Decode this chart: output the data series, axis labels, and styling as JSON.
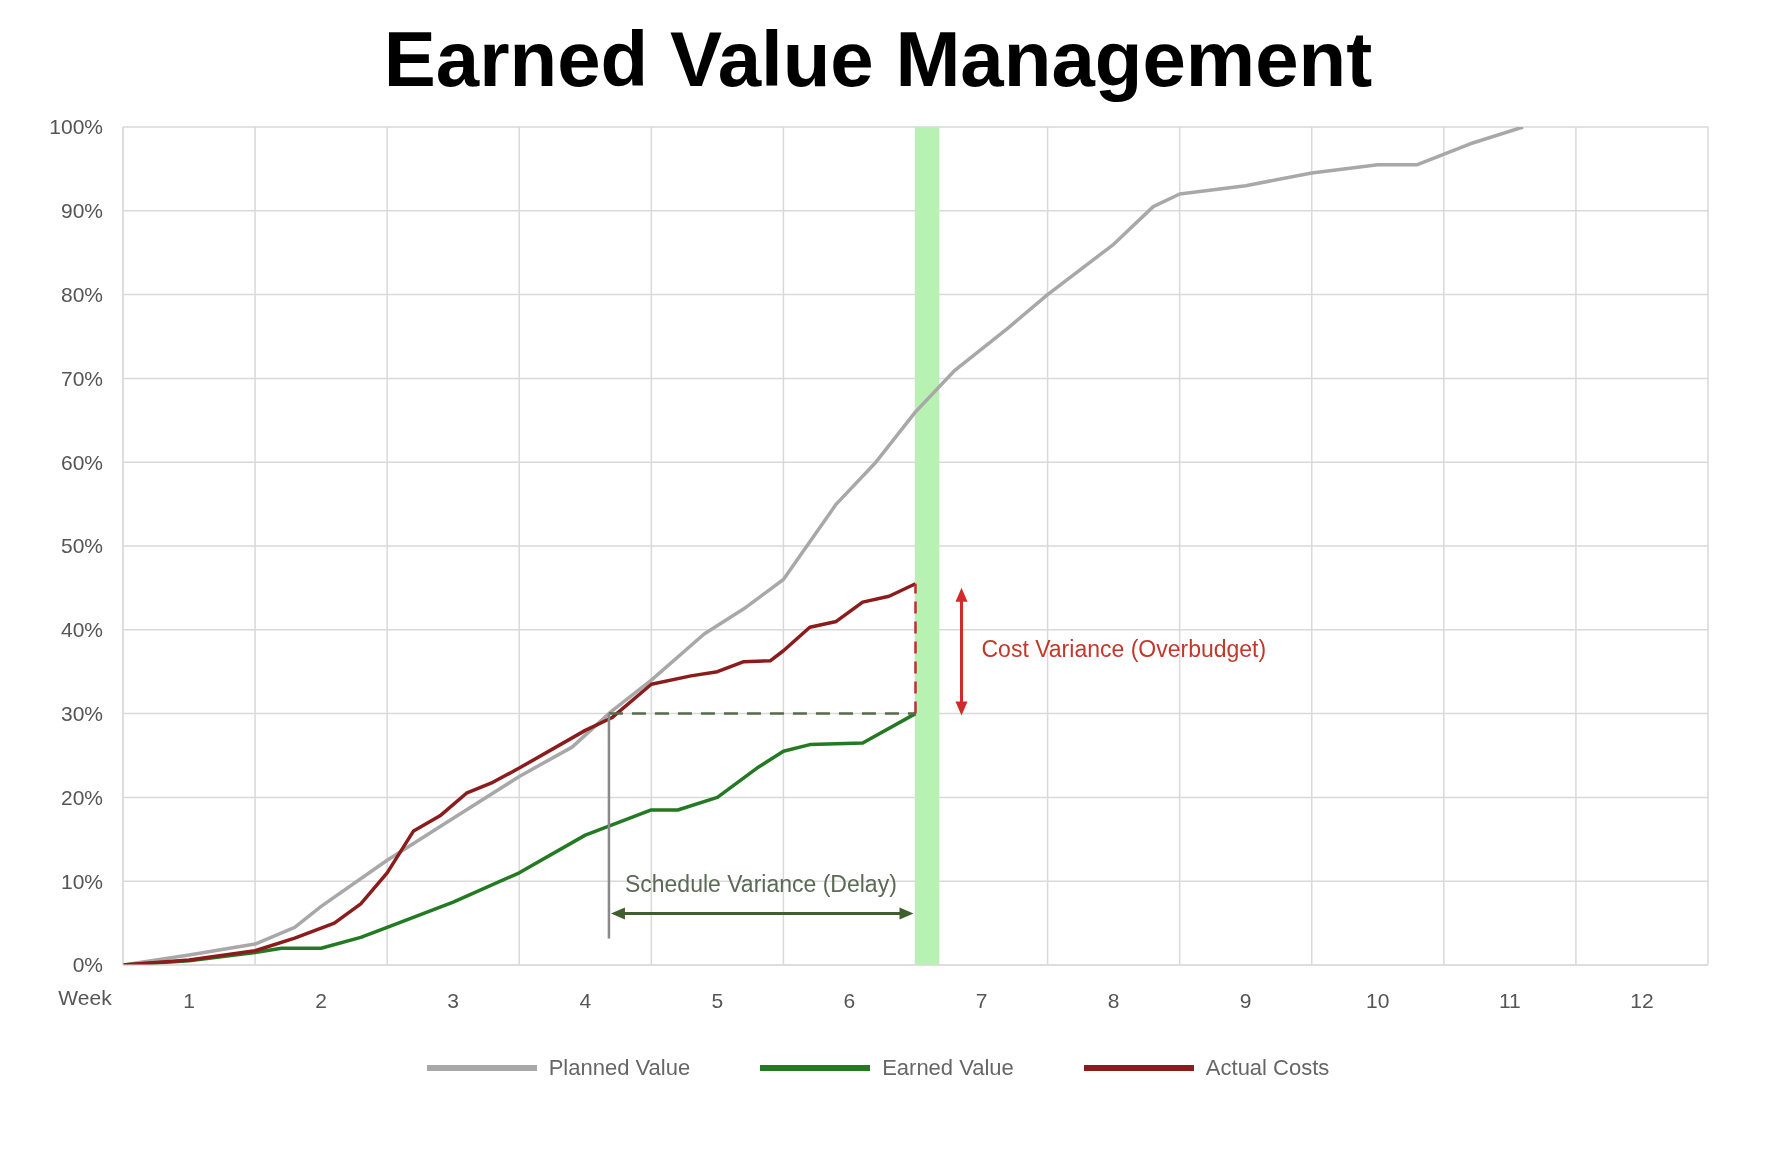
{
  "chart_data": {
    "type": "line",
    "title": "Earned Value Management",
    "xlabel": "Week",
    "xlim": [
      0,
      12
    ],
    "xticks": [
      {
        "value": 0,
        "label": null
      },
      {
        "value": 0.5,
        "label": "1"
      },
      {
        "value": 1,
        "label": null
      },
      {
        "value": 1.5,
        "label": "2"
      },
      {
        "value": 2,
        "label": null
      },
      {
        "value": 2.5,
        "label": "3"
      },
      {
        "value": 3,
        "label": null
      },
      {
        "value": 3.5,
        "label": "4"
      },
      {
        "value": 4,
        "label": null
      },
      {
        "value": 4.5,
        "label": "5"
      },
      {
        "value": 5,
        "label": null
      },
      {
        "value": 5.5,
        "label": "6"
      },
      {
        "value": 6,
        "label": null
      },
      {
        "value": 6.5,
        "label": "7"
      },
      {
        "value": 7,
        "label": null
      },
      {
        "value": 7.5,
        "label": "8"
      },
      {
        "value": 8,
        "label": null
      },
      {
        "value": 8.5,
        "label": "9"
      },
      {
        "value": 9,
        "label": null
      },
      {
        "value": 9.5,
        "label": "10"
      },
      {
        "value": 10,
        "label": null
      },
      {
        "value": 10.5,
        "label": "11"
      },
      {
        "value": 11,
        "label": null
      },
      {
        "value": 11.5,
        "label": "12"
      },
      {
        "value": 12,
        "label": null
      }
    ],
    "ylim": [
      0,
      100
    ],
    "yticks": [
      {
        "value": 0,
        "label": "0%"
      },
      {
        "value": 10,
        "label": "10%"
      },
      {
        "value": 20,
        "label": "20%"
      },
      {
        "value": 30,
        "label": "30%"
      },
      {
        "value": 40,
        "label": "40%"
      },
      {
        "value": 50,
        "label": "50%"
      },
      {
        "value": 60,
        "label": "60%"
      },
      {
        "value": 70,
        "label": "70%"
      },
      {
        "value": 80,
        "label": "80%"
      },
      {
        "value": 90,
        "label": "90%"
      },
      {
        "value": 100,
        "label": "100%"
      }
    ],
    "grid": true,
    "legend": "bottom",
    "marker": "none",
    "line_style": "solid",
    "series": [
      {
        "name": "Planned Value",
        "color": "#a8a8a8",
        "x": [
          0,
          0.5,
          1,
          1.3,
          1.5,
          2,
          2.5,
          3,
          3.4,
          3.7,
          4,
          4.4,
          4.7,
          5,
          5.4,
          5.7,
          6,
          6.3,
          6.7,
          7,
          7.5,
          7.8,
          8,
          8.5,
          9,
          9.5,
          9.8,
          10.2,
          10.6
        ],
        "values": [
          0,
          1.2,
          2.5,
          4.5,
          7,
          12.5,
          17.5,
          22.5,
          26,
          30.3,
          34,
          39.5,
          42.5,
          46,
          55,
          60,
          66,
          71,
          76,
          80,
          86,
          90.5,
          92,
          93,
          94.5,
          95.5,
          95.5,
          98,
          100
        ]
      },
      {
        "name": "Earned Value",
        "color": "#237a23",
        "x": [
          0,
          0.5,
          1,
          1.2,
          1.5,
          1.8,
          2,
          2.5,
          3,
          3.5,
          4,
          4.2,
          4.5,
          4.8,
          5,
          5.2,
          5.6,
          6
        ],
        "values": [
          0,
          0.5,
          1.5,
          2,
          2,
          3.3,
          4.5,
          7.5,
          11,
          15.5,
          18.5,
          18.5,
          20,
          23.5,
          25.5,
          26.3,
          26.5,
          30
        ]
      },
      {
        "name": "Actual Costs",
        "color": "#8b1c1c",
        "x": [
          0,
          0.5,
          1,
          1.3,
          1.6,
          1.8,
          2,
          2.2,
          2.4,
          2.6,
          2.8,
          3,
          3.5,
          3.7,
          4,
          4.3,
          4.5,
          4.7,
          4.9,
          5,
          5.2,
          5.4,
          5.6,
          5.8,
          6
        ],
        "values": [
          0,
          0.6,
          1.7,
          3.2,
          5,
          7.3,
          11,
          16,
          17.8,
          20.5,
          21.8,
          23.5,
          28,
          29.5,
          33.5,
          34.5,
          35,
          36.2,
          36.3,
          37.5,
          40.3,
          41,
          43.3,
          44,
          45.5
        ]
      }
    ],
    "bands": [
      {
        "axis": "x",
        "from": 6.0,
        "to": 6.18,
        "color": "#b8f2b2"
      }
    ],
    "annotations": [
      "Schedule Variance (Delay)",
      "Cost Variance (Overbudget)"
    ]
  }
}
